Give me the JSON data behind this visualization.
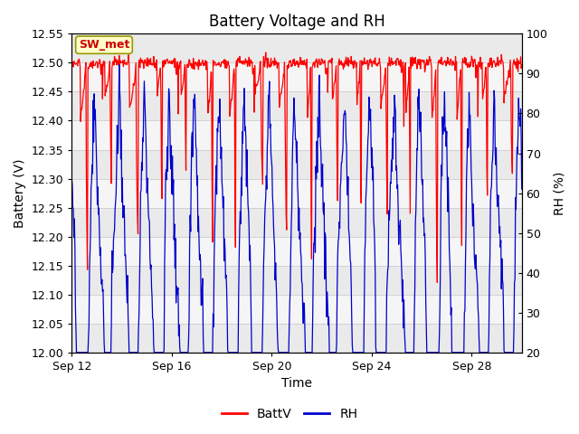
{
  "title": "Battery Voltage and RH",
  "xlabel": "Time",
  "ylabel_left": "Battery (V)",
  "ylabel_right": "RH (%)",
  "ylim_left": [
    12.0,
    12.55
  ],
  "ylim_right": [
    20,
    100
  ],
  "yticks_left": [
    12.0,
    12.05,
    12.1,
    12.15,
    12.2,
    12.25,
    12.3,
    12.35,
    12.4,
    12.45,
    12.5,
    12.55
  ],
  "yticks_right": [
    20,
    30,
    40,
    50,
    60,
    70,
    80,
    90,
    100
  ],
  "xtick_labels": [
    "Sep 12",
    "Sep 16",
    "Sep 20",
    "Sep 24",
    "Sep 28"
  ],
  "xtick_positions": [
    0,
    4,
    8,
    12,
    16
  ],
  "xlim": [
    0,
    18
  ],
  "color_battv": "#ff0000",
  "color_rh": "#0000cc",
  "legend_label_battv": "BattV",
  "legend_label_rh": "RH",
  "annotation_text": "SW_met",
  "annotation_bg": "#ffffcc",
  "annotation_border": "#999900",
  "annotation_text_color": "#cc0000",
  "background_color": "#ffffff",
  "grid_color": "#cccccc",
  "axes_bg_color": "#f0f0f0",
  "title_fontsize": 12,
  "axis_label_fontsize": 10,
  "tick_label_fontsize": 9
}
